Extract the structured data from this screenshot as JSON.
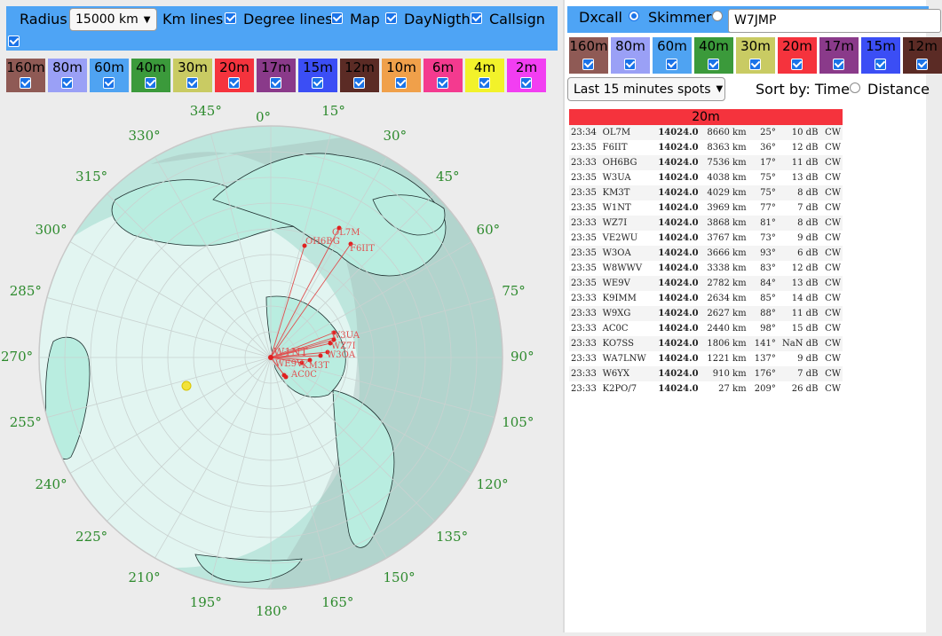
{
  "controls": {
    "radius_label": "Radius",
    "radius_value": "15000 km",
    "km_lines_label": "Km lines",
    "degree_lines_label": "Degree lines",
    "map_label": "Map",
    "daynight_label": "DayNigth",
    "callsign_label": "Callsign"
  },
  "bands_left": [
    {
      "label": "160m",
      "color": "#8f5a55"
    },
    {
      "label": "80m",
      "color": "#9aa0f6"
    },
    {
      "label": "60m",
      "color": "#4fa3f2"
    },
    {
      "label": "40m",
      "color": "#3b9a3b"
    },
    {
      "label": "30m",
      "color": "#c9cb63"
    },
    {
      "label": "20m",
      "color": "#f5333d"
    },
    {
      "label": "17m",
      "color": "#8a3a8a"
    },
    {
      "label": "15m",
      "color": "#3b4ef5"
    },
    {
      "label": "12m",
      "color": "#5b2b25"
    },
    {
      "label": "10m",
      "color": "#f0a04a"
    },
    {
      "label": "6m",
      "color": "#f43a8f"
    },
    {
      "label": "4m",
      "color": "#f2f22a"
    },
    {
      "label": "2m",
      "color": "#f23ef2"
    }
  ],
  "bands_right": [
    {
      "label": "160m",
      "color": "#8f5a55"
    },
    {
      "label": "80m",
      "color": "#9aa0f6"
    },
    {
      "label": "60m",
      "color": "#4fa3f2"
    },
    {
      "label": "40m",
      "color": "#3b9a3b"
    },
    {
      "label": "30m",
      "color": "#c9cb63"
    },
    {
      "label": "20m",
      "color": "#f5333d"
    },
    {
      "label": "17m",
      "color": "#8a3a8a"
    },
    {
      "label": "15m",
      "color": "#3b4ef5"
    },
    {
      "label": "12m",
      "color": "#5b2b25"
    }
  ],
  "dx": {
    "dxcall_label": "Dxcall",
    "skimmer_label": "Skimmer",
    "callsign_value": "W7JMP",
    "time_filter": "Last 15 minutes spots",
    "sort_label": "Sort by: Time",
    "distance_label": "Distance"
  },
  "map": {
    "degree_labels": [
      "0°",
      "15°",
      "30°",
      "45°",
      "60°",
      "75°",
      "90°",
      "105°",
      "120°",
      "135°",
      "150°",
      "165°",
      "180°",
      "195°",
      "210°",
      "225°",
      "240°",
      "255°",
      "270°",
      "285°",
      "300°",
      "315°",
      "330°",
      "345°"
    ],
    "spot_labels": [
      "OL7M",
      "F6IIT",
      "OH6BG",
      "W3UA",
      "WZ7I",
      "W3OA",
      "W1NT",
      "WE9V",
      "KM3T",
      "AC0C"
    ]
  },
  "spots": {
    "band_title": "20m",
    "rows": [
      [
        "23:34",
        "OL7M",
        "14024.0",
        "8660 km",
        "25°",
        "10 dB",
        "CW"
      ],
      [
        "23:35",
        "F6IIT",
        "14024.0",
        "8363 km",
        "36°",
        "12 dB",
        "CW"
      ],
      [
        "23:33",
        "OH6BG",
        "14024.0",
        "7536 km",
        "17°",
        "11 dB",
        "CW"
      ],
      [
        "23:35",
        "W3UA",
        "14024.0",
        "4038 km",
        "75°",
        "13 dB",
        "CW"
      ],
      [
        "23:35",
        "KM3T",
        "14024.0",
        "4029 km",
        "75°",
        "8 dB",
        "CW"
      ],
      [
        "23:35",
        "W1NT",
        "14024.0",
        "3969 km",
        "77°",
        "7 dB",
        "CW"
      ],
      [
        "23:33",
        "WZ7I",
        "14024.0",
        "3868 km",
        "81°",
        "8 dB",
        "CW"
      ],
      [
        "23:35",
        "VE2WU",
        "14024.0",
        "3767 km",
        "73°",
        "9 dB",
        "CW"
      ],
      [
        "23:35",
        "W3OA",
        "14024.0",
        "3666 km",
        "93°",
        "6 dB",
        "CW"
      ],
      [
        "23:35",
        "W8WWV",
        "14024.0",
        "3338 km",
        "83°",
        "12 dB",
        "CW"
      ],
      [
        "23:35",
        "WE9V",
        "14024.0",
        "2782 km",
        "84°",
        "13 dB",
        "CW"
      ],
      [
        "23:33",
        "K9IMM",
        "14024.0",
        "2634 km",
        "85°",
        "14 dB",
        "CW"
      ],
      [
        "23:33",
        "W9XG",
        "14024.0",
        "2627 km",
        "88°",
        "11 dB",
        "CW"
      ],
      [
        "23:33",
        "AC0C",
        "14024.0",
        "2440 km",
        "98°",
        "15 dB",
        "CW"
      ],
      [
        "23:33",
        "KO7SS",
        "14024.0",
        "1806 km",
        "141°",
        "NaN dB",
        "CW"
      ],
      [
        "23:33",
        "WA7LNW",
        "14024.0",
        "1221 km",
        "137°",
        "9 dB",
        "CW"
      ],
      [
        "23:33",
        "W6YX",
        "14024.0",
        "910 km",
        "176°",
        "7 dB",
        "CW"
      ],
      [
        "23:33",
        "K2PO/7",
        "14024.0",
        "27 km",
        "209°",
        "26 dB",
        "CW"
      ]
    ]
  }
}
